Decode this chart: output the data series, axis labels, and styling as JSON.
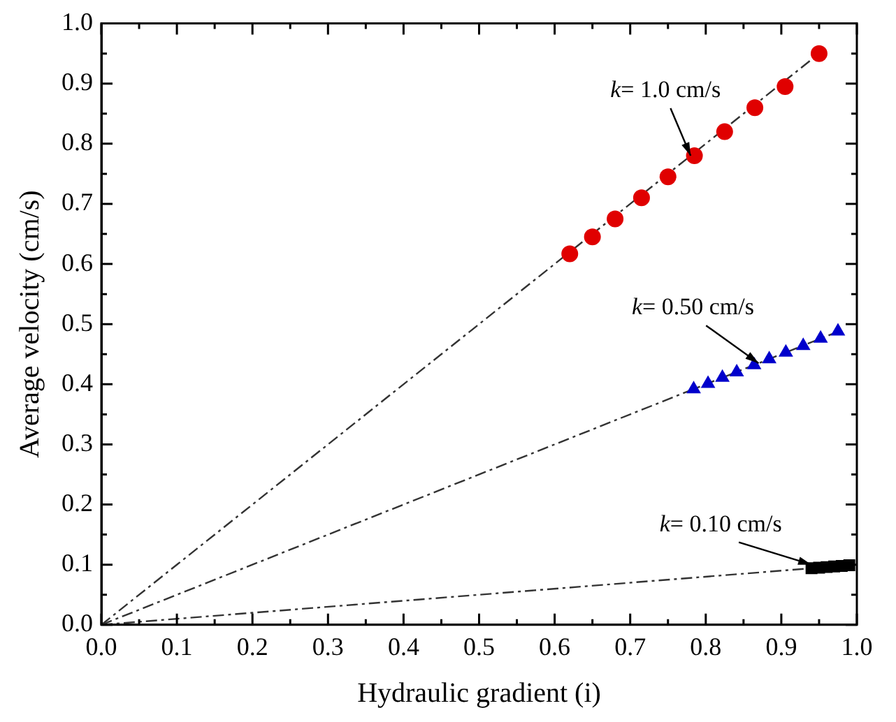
{
  "chart_data": {
    "type": "scatter",
    "xlabel": "Hydraulic gradient (i)",
    "ylabel": "Average velocity (cm/s)",
    "xlim": [
      0,
      1
    ],
    "xticks": [
      {
        "value": 0,
        "label": "0.0"
      },
      0.1,
      0.2,
      0.3,
      0.4,
      0.5,
      0.6,
      0.7,
      0.8,
      0.9,
      {
        "value": 1,
        "label": "1.0"
      }
    ],
    "ylim": [
      0,
      1
    ],
    "yticks": [
      {
        "value": 0,
        "label": "0.0"
      },
      0.1,
      0.2,
      0.3,
      0.4,
      0.5,
      0.6,
      0.7,
      0.8,
      0.9,
      {
        "value": 1,
        "label": "1.0"
      }
    ],
    "grid": false,
    "legend": false,
    "series": [
      {
        "type": "line",
        "color": "#333333",
        "line_style": "dashed",
        "marker": "none",
        "x": [
          0,
          0.95
        ],
        "values": [
          0,
          0.95
        ]
      },
      {
        "type": "line",
        "color": "#333333",
        "line_style": "dashed",
        "marker": "none",
        "x": [
          0,
          0.98
        ],
        "values": [
          0,
          0.49
        ]
      },
      {
        "type": "line",
        "color": "#333333",
        "line_style": "dashed",
        "marker": "none",
        "x": [
          0,
          0.99
        ],
        "values": [
          0,
          0.099
        ]
      },
      {
        "color": "#e00000",
        "marker": "circle",
        "x": [
          0.62,
          0.65,
          0.68,
          0.715,
          0.75,
          0.785,
          0.825,
          0.865,
          0.905,
          0.95
        ],
        "values": [
          0.617,
          0.645,
          0.675,
          0.71,
          0.745,
          0.78,
          0.82,
          0.86,
          0.895,
          0.95
        ]
      },
      {
        "color": "#0000cc",
        "marker": "triangle",
        "x": [
          0.784,
          0.803,
          0.822,
          0.841,
          0.864,
          0.884,
          0.906,
          0.929,
          0.952,
          0.975
        ],
        "values": [
          0.392,
          0.401,
          0.411,
          0.42,
          0.432,
          0.442,
          0.453,
          0.464,
          0.476,
          0.488
        ]
      },
      {
        "color": "#000000",
        "marker": "square",
        "x": [
          0.94,
          0.95,
          0.96,
          0.97,
          0.98,
          0.99
        ],
        "values": [
          0.094,
          0.095,
          0.096,
          0.097,
          0.098,
          0.099
        ]
      }
    ],
    "annotations": [
      {
        "text": "k= 1.0 cm/s",
        "x": 0.78,
        "y": 0.78
      },
      {
        "text": "k= 0.50 cm/s",
        "x": 0.87,
        "y": 0.435
      },
      {
        "text": "k= 0.10 cm/s",
        "x": 0.94,
        "y": 0.1
      }
    ]
  }
}
